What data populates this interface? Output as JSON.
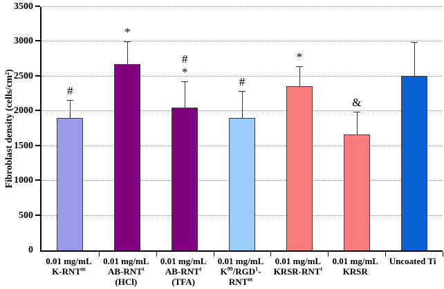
{
  "chart_data": {
    "type": "bar",
    "title": "",
    "xlabel": "",
    "ylabel": "Fibroblast density (cells/cm²)",
    "ylim": [
      0,
      3500
    ],
    "yticks": [
      0,
      500,
      1000,
      1500,
      2000,
      2500,
      3000,
      3500
    ],
    "grid": "horizontal dotted gridlines every 500, including top line at 3500",
    "legend_position": "none",
    "categories": [
      "0.01 mg/mL K-RNT^{m}",
      "0.01 mg/mL AB-RNT^{t} (HCl)",
      "0.01 mg/mL AB-RNT^{t} (TFA)",
      "0.01 mg/mL K^{99}/RGD^{1}-RNT^{m}",
      "0.01 mg/mL KRSR-RNT^{t}",
      "0.01 mg/mL KRSR",
      "Uncoated Ti"
    ],
    "category_label_lines": [
      [
        "0.01 mg/mL",
        "K-RNT^{m}"
      ],
      [
        "0.01 mg/mL",
        "AB-RNT^{t}",
        "(HCl)"
      ],
      [
        "0.01 mg/mL",
        "AB-RNT^{t}",
        "(TFA)"
      ],
      [
        "0.01 mg/mL",
        "K^{99}/RGD^{1}-",
        "RNT^{m}"
      ],
      [
        "0.01 mg/mL",
        "KRSR-RNT^{t}"
      ],
      [
        "0.01 mg/mL",
        "KRSR"
      ],
      [
        "Uncoated Ti"
      ]
    ],
    "values": [
      1900,
      2680,
      2055,
      1905,
      2355,
      1670,
      2505
    ],
    "errors_upper": [
      250,
      310,
      365,
      380,
      285,
      310,
      480
    ],
    "significance_markers": [
      [
        "#"
      ],
      [
        "*"
      ],
      [
        "#",
        "*"
      ],
      [
        "#"
      ],
      [
        "*"
      ],
      [
        "&"
      ],
      []
    ],
    "bar_colors": [
      "#9a9aec",
      "#800080",
      "#800080",
      "#99ccf8",
      "#fa7d7d",
      "#fa7d7d",
      "#0b62d4"
    ],
    "bar_border_color": "#3a3a3a",
    "error_bar_color": "#333333",
    "gridline_color": "#8c8c8c",
    "axis_color": "#000000",
    "text_color": "#000000",
    "background_color": "#ffffff"
  }
}
